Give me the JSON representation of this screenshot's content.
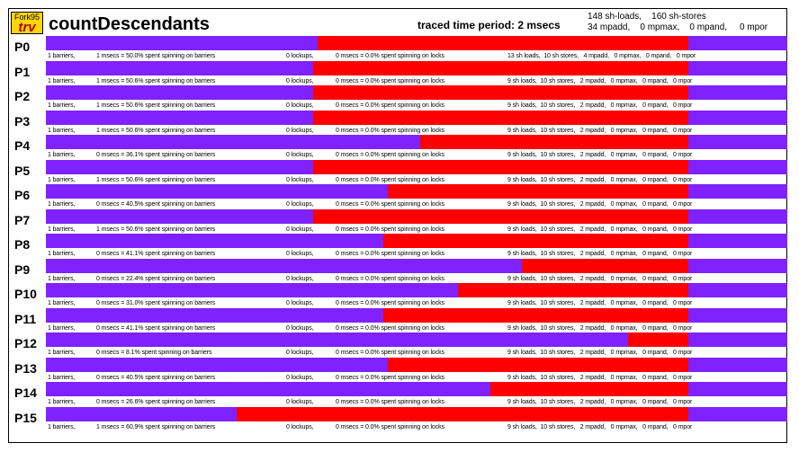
{
  "header": {
    "logo_top": "Fork95",
    "logo_bottom": "trv",
    "title": "countDescendants",
    "period": "traced time period: 2 msecs",
    "stats_line1": "148 sh-loads,    160 sh-stores",
    "stats_line2": "34 mpadd,    0 mpmax,    0 mpand,     0 mpor"
  },
  "colors": {
    "idle": "#7f22ff",
    "busy": "#ff0000",
    "logo": "#ffd700"
  },
  "processors": [
    {
      "label": "P0",
      "red_start": 0.367,
      "red_end": 0.866,
      "barriers": "1 barriers,",
      "spin_barriers": "1 msecs = 50.0% spent spinning on barriers",
      "lockups": "0 lockups,",
      "spin_locks": "0 msecs = 0.0% spent spinning on locks",
      "counts": "13 sh loads,  10 sh stores,   4 mpadd,   0 mpmax,   0 mpand,   0 mpor"
    },
    {
      "label": "P1",
      "red_start": 0.361,
      "red_end": 0.866,
      "barriers": "1 barriers,",
      "spin_barriers": "1 msecs = 50.6% spent spinning on barriers",
      "lockups": "0 lockups,",
      "spin_locks": "0 msecs = 0.0% spent spinning on locks",
      "counts": "9 sh loads,  10 sh stores,   2 mpadd,   0 mpmax,   0 mpand,   0 mpor"
    },
    {
      "label": "P2",
      "red_start": 0.361,
      "red_end": 0.866,
      "barriers": "1 barriers,",
      "spin_barriers": "1 msecs = 50.6% spent spinning on barriers",
      "lockups": "0 lockups,",
      "spin_locks": "0 msecs = 0.0% spent spinning on locks",
      "counts": "9 sh loads,  10 sh stores,   2 mpadd,   0 mpmax,   0 mpand,   0 mpor"
    },
    {
      "label": "P3",
      "red_start": 0.361,
      "red_end": 0.866,
      "barriers": "1 barriers,",
      "spin_barriers": "1 msecs = 50.6% spent spinning on barriers",
      "lockups": "0 lockups,",
      "spin_locks": "0 msecs = 0.0% spent spinning on locks",
      "counts": "9 sh loads,  10 sh stores,   2 mpadd,   0 mpmax,   0 mpand,   0 mpor"
    },
    {
      "label": "P4",
      "red_start": 0.505,
      "red_end": 0.866,
      "barriers": "1 barriers,",
      "spin_barriers": "0 msecs = 36.1% spent spinning on barriers",
      "lockups": "0 lockups,",
      "spin_locks": "0 msecs = 0.0% spent spinning on locks",
      "counts": "9 sh loads,  10 sh stores,   2 mpadd,   0 mpmax,   0 mpand,   0 mpor"
    },
    {
      "label": "P5",
      "red_start": 0.361,
      "red_end": 0.866,
      "barriers": "1 barriers,",
      "spin_barriers": "1 msecs = 50.6% spent spinning on barriers",
      "lockups": "0 lockups,",
      "spin_locks": "0 msecs = 0.0% spent spinning on locks",
      "counts": "9 sh loads,  10 sh stores,   2 mpadd,   0 mpmax,   0 mpand,   0 mpor"
    },
    {
      "label": "P6",
      "red_start": 0.461,
      "red_end": 0.866,
      "barriers": "1 barriers,",
      "spin_barriers": "0 msecs = 40.5% spent spinning on barriers",
      "lockups": "0 lockups,",
      "spin_locks": "0 msecs = 0.0% spent spinning on locks",
      "counts": "9 sh loads,  10 sh stores,   2 mpadd,   0 mpmax,   0 mpand,   0 mpor"
    },
    {
      "label": "P7",
      "red_start": 0.361,
      "red_end": 0.866,
      "barriers": "1 barriers,",
      "spin_barriers": "1 msecs = 50.6% spent spinning on barriers",
      "lockups": "0 lockups,",
      "spin_locks": "0 msecs = 0.0% spent spinning on locks",
      "counts": "9 sh loads,  10 sh stores,   2 mpadd,   0 mpmax,   0 mpand,   0 mpor"
    },
    {
      "label": "P8",
      "red_start": 0.455,
      "red_end": 0.866,
      "barriers": "1 barriers,",
      "spin_barriers": "0 msecs = 41.1% spent spinning on barriers",
      "lockups": "0 lockups,",
      "spin_locks": "0 msecs = 0.0% spent spinning on locks",
      "counts": "9 sh loads,  10 sh stores,   2 mpadd,   0 mpmax,   0 mpand,   0 mpor"
    },
    {
      "label": "P9",
      "red_start": 0.642,
      "red_end": 0.866,
      "barriers": "1 barriers,",
      "spin_barriers": "0 msecs = 22.4% spent spinning on barriers",
      "lockups": "0 lockups,",
      "spin_locks": "0 msecs = 0.0% spent spinning on locks",
      "counts": "9 sh loads,  10 sh stores,   2 mpadd,   0 mpmax,   0 mpand,   0 mpor"
    },
    {
      "label": "P10",
      "red_start": 0.556,
      "red_end": 0.866,
      "barriers": "1 barriers,",
      "spin_barriers": "0 msecs = 31.0% spent spinning on barriers",
      "lockups": "0 lockups,",
      "spin_locks": "0 msecs = 0.0% spent spinning on locks",
      "counts": "9 sh loads,  10 sh stores,   2 mpadd,   0 mpmax,   0 mpand,   0 mpor"
    },
    {
      "label": "P11",
      "red_start": 0.455,
      "red_end": 0.866,
      "barriers": "1 barriers,",
      "spin_barriers": "0 msecs = 41.1% spent spinning on barriers",
      "lockups": "0 lockups,",
      "spin_locks": "0 msecs = 0.0% spent spinning on locks",
      "counts": "9 sh loads,  10 sh stores,   2 mpadd,   0 mpmax,   0 mpand,   0 mpor"
    },
    {
      "label": "P12",
      "red_start": 0.785,
      "red_end": 0.866,
      "barriers": "1 barriers,",
      "spin_barriers": "0 msecs = 8.1% spent spinning on barriers",
      "lockups": "0 lockups,",
      "spin_locks": "0 msecs = 0.0% spent spinning on locks",
      "counts": "9 sh loads,  10 sh stores,   2 mpadd,   0 mpmax,   0 mpand,   0 mpor"
    },
    {
      "label": "P13",
      "red_start": 0.461,
      "red_end": 0.866,
      "barriers": "1 barriers,",
      "spin_barriers": "0 msecs = 40.5% spent spinning on barriers",
      "lockups": "0 lockups,",
      "spin_locks": "0 msecs = 0.0% spent spinning on locks",
      "counts": "9 sh loads,  10 sh stores,   2 mpadd,   0 mpmax,   0 mpand,   0 mpor"
    },
    {
      "label": "P14",
      "red_start": 0.6,
      "red_end": 0.866,
      "barriers": "1 barriers,",
      "spin_barriers": "0 msecs = 26.6% spent spinning on barriers",
      "lockups": "0 lockups,",
      "spin_locks": "0 msecs = 0.0% spent spinning on locks",
      "counts": "9 sh loads,  10 sh stores,   2 mpadd,   0 mpmax,   0 mpand,   0 mpor"
    },
    {
      "label": "P15",
      "red_start": 0.257,
      "red_end": 0.866,
      "barriers": "1 barriers,",
      "spin_barriers": "1 msecs = 60.9% spent spinning on barriers",
      "lockups": "0 lockups,",
      "spin_locks": "0 msecs = 0.0% spent spinning on locks",
      "counts": "9 sh loads,  10 sh stores,   2 mpadd,   0 mpmax,   0 mpand,   0 mpor"
    }
  ]
}
